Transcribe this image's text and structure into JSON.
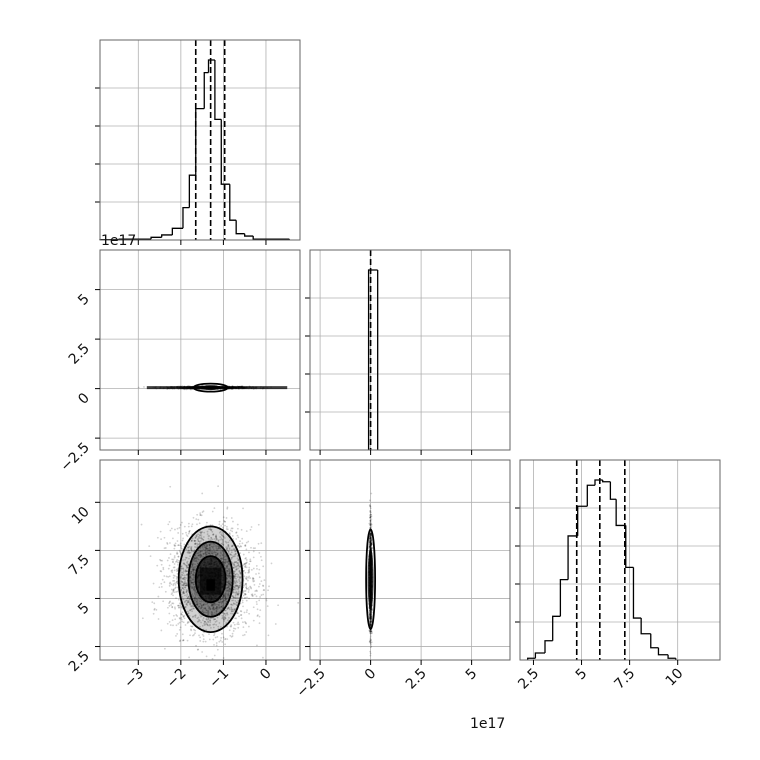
{
  "figure": {
    "offset_text_top": "1e17",
    "offset_text_bottom": "1e17"
  },
  "chart_data": [
    {
      "panel": "param1-marginal",
      "type": "histogram",
      "x_range": [
        -3.9,
        0.8
      ],
      "bins": [
        {
          "left": -3.9,
          "right": -3.45,
          "height": 0.2
        },
        {
          "left": -3.45,
          "right": -2.7,
          "height": 0.5
        },
        {
          "left": -2.7,
          "right": -2.45,
          "height": 1.5
        },
        {
          "left": -2.45,
          "right": -2.2,
          "height": 2.8
        },
        {
          "left": -2.2,
          "right": -1.95,
          "height": 6.5
        },
        {
          "left": -1.95,
          "right": -1.8,
          "height": 18
        },
        {
          "left": -1.8,
          "right": -1.65,
          "height": 36
        },
        {
          "left": -1.65,
          "right": -1.45,
          "height": 73
        },
        {
          "left": -1.45,
          "right": -1.35,
          "height": 93
        },
        {
          "left": -1.35,
          "right": -1.2,
          "height": 100
        },
        {
          "left": -1.2,
          "right": -1.05,
          "height": 67
        },
        {
          "left": -1.05,
          "right": -0.85,
          "height": 31
        },
        {
          "left": -0.85,
          "right": -0.7,
          "height": 11
        },
        {
          "left": -0.7,
          "right": -0.5,
          "height": 3.5
        },
        {
          "left": -0.5,
          "right": -0.3,
          "height": 2.2
        },
        {
          "left": -0.3,
          "right": 0.55,
          "height": 0.5
        }
      ],
      "quantiles": [
        -1.65,
        -1.3,
        -0.97
      ],
      "x_ticks": [
        -3,
        -2,
        -1,
        0
      ],
      "grid": true
    },
    {
      "panel": "param2-marginal",
      "type": "histogram",
      "x_range": [
        -3.0,
        6.9
      ],
      "bins": [
        {
          "left": -0.1,
          "right": 0.35,
          "height": 100
        }
      ],
      "quantiles": [
        0.0
      ],
      "x_ticks": [
        -2.5,
        0.0,
        2.5,
        5.0
      ],
      "grid": true
    },
    {
      "panel": "param3-marginal",
      "type": "histogram",
      "x_range": [
        1.8,
        12.2
      ],
      "bins": [
        {
          "left": 2.2,
          "right": 2.6,
          "height": 1
        },
        {
          "left": 2.6,
          "right": 3.1,
          "height": 4
        },
        {
          "left": 3.1,
          "right": 3.5,
          "height": 11
        },
        {
          "left": 3.5,
          "right": 3.9,
          "height": 25
        },
        {
          "left": 3.9,
          "right": 4.3,
          "height": 46
        },
        {
          "left": 4.3,
          "right": 4.8,
          "height": 71
        },
        {
          "left": 4.8,
          "right": 5.3,
          "height": 88
        },
        {
          "left": 5.3,
          "right": 5.7,
          "height": 100
        },
        {
          "left": 5.7,
          "right": 6.1,
          "height": 103
        },
        {
          "left": 6.1,
          "right": 6.5,
          "height": 102
        },
        {
          "left": 6.5,
          "right": 6.8,
          "height": 92
        },
        {
          "left": 6.8,
          "right": 7.3,
          "height": 77
        },
        {
          "left": 7.3,
          "right": 7.7,
          "height": 53
        },
        {
          "left": 7.7,
          "right": 8.1,
          "height": 24
        },
        {
          "left": 8.1,
          "right": 8.6,
          "height": 15
        },
        {
          "left": 8.6,
          "right": 9.0,
          "height": 7
        },
        {
          "left": 9.0,
          "right": 9.5,
          "height": 3
        },
        {
          "left": 9.5,
          "right": 9.9,
          "height": 1
        }
      ],
      "quantiles": [
        4.75,
        5.95,
        7.25
      ],
      "x_ticks": [
        2.5,
        5.0,
        7.5,
        10.0
      ],
      "grid": true
    },
    {
      "panel": "param2-vs-param1",
      "type": "scatter-density",
      "x_range": [
        -3.9,
        0.8
      ],
      "y_range": [
        -3.1,
        7.0
      ],
      "center": [
        -1.3,
        0.05
      ],
      "x_ticks": [
        -3,
        -2,
        -1,
        0
      ],
      "y_ticks": [
        -2.5,
        0.0,
        2.5,
        5.0
      ],
      "grid": true
    },
    {
      "panel": "param3-vs-param1",
      "type": "scatter-density",
      "x_range": [
        -3.9,
        0.8
      ],
      "y_range": [
        1.8,
        12.2
      ],
      "center": [
        -1.3,
        6.0
      ],
      "contour_levels": [
        {
          "rx": 0.75,
          "ry": 2.75
        },
        {
          "rx": 0.52,
          "ry": 1.95
        },
        {
          "rx": 0.35,
          "ry": 1.2
        }
      ],
      "x_ticks": [
        -3,
        -2,
        -1,
        0
      ],
      "y_ticks": [
        2.5,
        5.0,
        7.5,
        10.0
      ],
      "grid": true
    },
    {
      "panel": "param3-vs-param2",
      "type": "scatter-density",
      "x_range": [
        -3.0,
        6.9
      ],
      "y_range": [
        1.8,
        12.2
      ],
      "center": [
        0.0,
        6.0
      ],
      "x_ticks": [
        -2.5,
        0.0,
        2.5,
        5.0
      ],
      "grid": true
    }
  ],
  "colors": {
    "line": "#000000",
    "grid": "#b0b0b0",
    "spine": "#666666",
    "point": "#000000"
  }
}
